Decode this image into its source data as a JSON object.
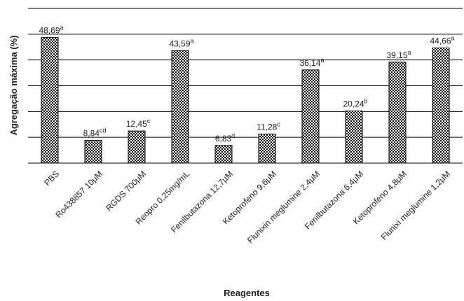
{
  "chart_data": {
    "type": "bar",
    "title": "",
    "xlabel": "Reagentes",
    "ylabel": "Agregação máxima (%)",
    "ylim": [
      0,
      60
    ],
    "grid": true,
    "categories": [
      "PBS",
      "Ro438857 10μM",
      "RGDS 700μM",
      "Reopro 0,25mg/mL",
      "Fenilbutazona 12,7μM",
      "Ketoprofeno 9,6μM",
      "Flunixin meglumine 2,4μM",
      "Fenilbutazona 6,4μM",
      "Ketoprofeno 4,8μM",
      "Flunixi meglumine 1,2μM"
    ],
    "values": [
      48.69,
      8.84,
      12.45,
      43.59,
      6.83,
      11.28,
      36.14,
      20.24,
      39.15,
      44.66
    ],
    "value_labels": [
      "48,69",
      "8,84",
      "12,45",
      "43,59",
      "6,83",
      "11,28",
      "36,14",
      "20,24",
      "39,15",
      "44,66"
    ],
    "superscripts": [
      "a",
      "cd",
      "c",
      "a",
      "d",
      "c",
      "a",
      "b",
      "a",
      "a"
    ]
  }
}
